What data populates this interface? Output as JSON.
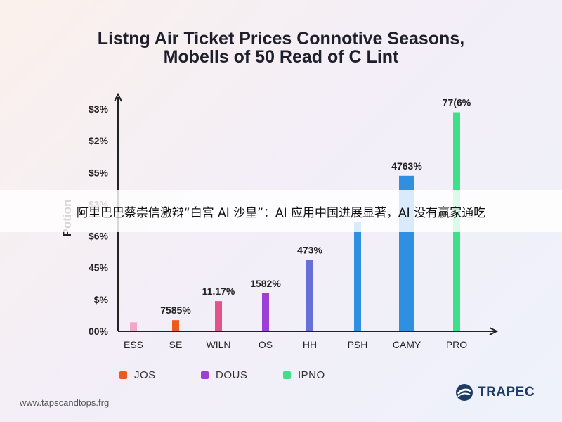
{
  "title_line1": "Listng Air Ticket Prices Connotive Seasons,",
  "title_line2": "Mobells of 50 Read of C Lint",
  "banner_text": "阿里巴巴蔡崇信激辩“白宫 AI 沙皇”：AI 应用中国进展显著，AI 没有赢家通吃",
  "footer_url": "www.tapscandtops.frg",
  "brand_name": "TRAPEC",
  "colors": {
    "brand": "#1d3d66",
    "axis": "#222222"
  },
  "chart_data": {
    "type": "bar",
    "title": "Listng Air Ticket Prices Connotive Seasons, Mobells of 50 Read of C Lint",
    "ylabel": "Potion",
    "xlabel": "",
    "ylim": [
      0,
      7
    ],
    "y_ticks": [
      "00%",
      "$%",
      "45%",
      "$6%",
      "$3%",
      "$5%",
      "$2%",
      "$3%"
    ],
    "categories": [
      "ESS",
      "SE",
      "WILN",
      "OS",
      "HH",
      "PSH",
      "CAMY",
      "PRO"
    ],
    "values": [
      0.28,
      0.35,
      0.95,
      1.2,
      2.25,
      3.45,
      4.9,
      6.9
    ],
    "data_labels": [
      "",
      "7585%",
      "11.17%",
      "1582%",
      "473%",
      "",
      "4763%",
      "77(6%"
    ],
    "bar_colors": [
      "#f2a6c8",
      "#ec5a1c",
      "#e2538e",
      "#9b3fd8",
      "#6670d6",
      "#2f8fe0",
      "#2f8fe0",
      "#3ee08a"
    ],
    "legend": [
      {
        "label": "JOS",
        "color": "#ec5a1c"
      },
      {
        "label": "DOUS",
        "color": "#9b3fd8"
      },
      {
        "label": "IPNO",
        "color": "#3ee08a"
      }
    ],
    "legend_position": "bottom-left",
    "grid": false
  }
}
